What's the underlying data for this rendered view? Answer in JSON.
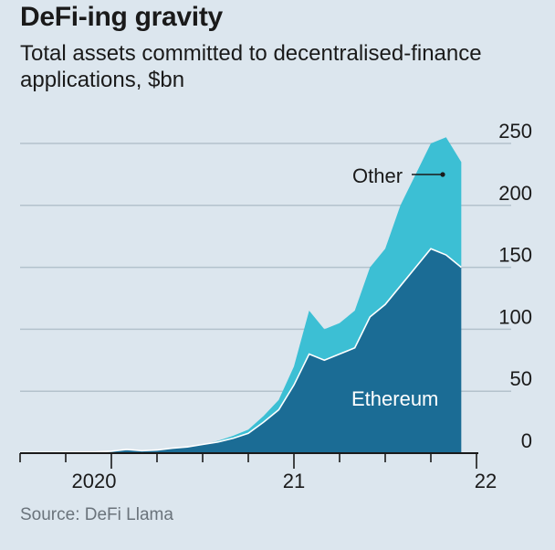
{
  "header": {
    "title": "DeFi-ing gravity",
    "subtitle": "Total assets committed to decentralised-finance applications, $bn"
  },
  "footer": {
    "source": "Source: DeFi Llama"
  },
  "colors": {
    "background": "#dce6ee",
    "ethereum": "#1b6c95",
    "other": "#3cbfd4",
    "gridline": "#b3c2cc",
    "ethereum_line": "#ffffff"
  },
  "chart_data": {
    "type": "area",
    "stacked": true,
    "title": "DeFi-ing gravity",
    "subtitle": "Total assets committed to decentralised-finance applications, $bn",
    "ylim": [
      0,
      250
    ],
    "y_ticks": [
      0,
      50,
      100,
      150,
      200,
      250
    ],
    "y_tick_labels": [
      "0",
      "50",
      "100",
      "150",
      "200",
      "250"
    ],
    "y_axis_side": "right",
    "x_tick_labels": [
      "2020",
      "21",
      "22"
    ],
    "grid": true,
    "annotations": [
      "Other",
      "Ethereum"
    ],
    "x": [
      "2019-07",
      "2019-08",
      "2019-09",
      "2019-10",
      "2019-11",
      "2019-12",
      "2020-01",
      "2020-02",
      "2020-03",
      "2020-04",
      "2020-05",
      "2020-06",
      "2020-07",
      "2020-08",
      "2020-09",
      "2020-10",
      "2020-11",
      "2020-12",
      "2021-01",
      "2021-02",
      "2021-03",
      "2021-04",
      "2021-05",
      "2021-06",
      "2021-07",
      "2021-08",
      "2021-09",
      "2021-10",
      "2021-11",
      "2021-12"
    ],
    "series": [
      {
        "name": "Ethereum",
        "values": [
          0.5,
          0.6,
          0.6,
          0.7,
          0.8,
          1,
          1.5,
          3,
          2,
          2.5,
          4,
          5,
          7,
          9,
          12,
          16,
          25,
          35,
          55,
          80,
          75,
          80,
          85,
          110,
          120,
          135,
          150,
          165,
          160,
          150
        ]
      },
      {
        "name": "Other",
        "values": [
          0,
          0,
          0,
          0,
          0,
          0,
          0,
          0,
          0,
          0,
          0,
          0,
          0,
          1,
          2,
          3,
          5,
          8,
          15,
          35,
          25,
          25,
          30,
          40,
          45,
          65,
          75,
          85,
          95,
          85
        ]
      }
    ]
  }
}
